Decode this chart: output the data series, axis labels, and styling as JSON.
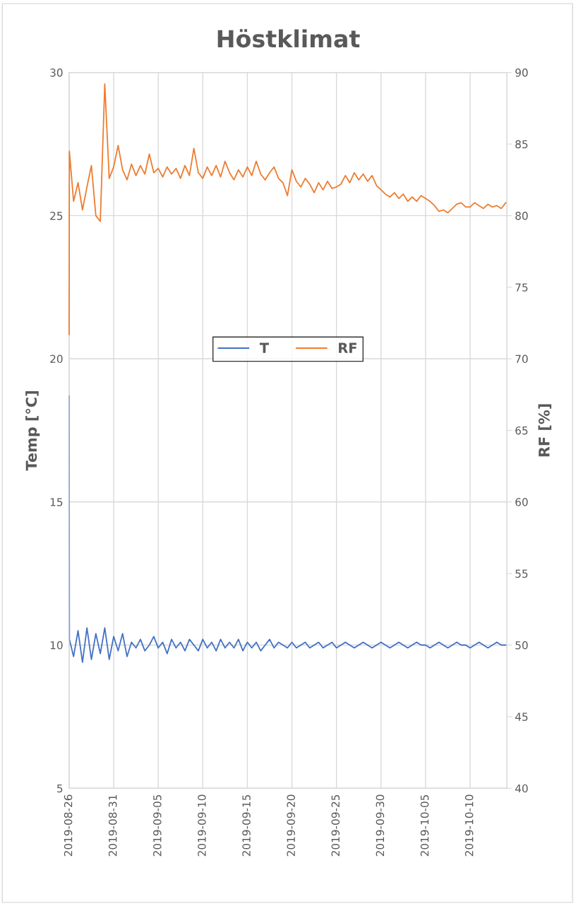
{
  "chart_data": {
    "type": "line",
    "title": "Höstklimat",
    "ylabel": "Temp [°C]",
    "y2label": "RF [%]",
    "x": [
      "2019-08-26",
      "2019-08-26T00:45",
      "2019-08-26T12:00",
      "2019-08-27",
      "2019-08-27T12:00",
      "2019-08-28",
      "2019-08-28T12:00",
      "2019-08-29",
      "2019-08-29T12:00",
      "2019-08-30",
      "2019-08-30T12:00",
      "2019-08-31",
      "2019-08-31T12:00",
      "2019-09-01",
      "2019-09-01T12:00",
      "2019-09-02",
      "2019-09-02T12:00",
      "2019-09-03",
      "2019-09-03T12:00",
      "2019-09-04",
      "2019-09-04T12:00",
      "2019-09-05",
      "2019-09-05T12:00",
      "2019-09-06",
      "2019-09-06T12:00",
      "2019-09-07",
      "2019-09-07T12:00",
      "2019-09-08",
      "2019-09-08T12:00",
      "2019-09-09",
      "2019-09-09T12:00",
      "2019-09-10",
      "2019-09-10T12:00",
      "2019-09-11",
      "2019-09-11T12:00",
      "2019-09-12",
      "2019-09-12T12:00",
      "2019-09-13",
      "2019-09-13T12:00",
      "2019-09-14",
      "2019-09-14T12:00",
      "2019-09-15",
      "2019-09-15T12:00",
      "2019-09-16",
      "2019-09-16T12:00",
      "2019-09-17",
      "2019-09-17T12:00",
      "2019-09-18",
      "2019-09-18T12:00",
      "2019-09-19",
      "2019-09-19T12:00",
      "2019-09-20",
      "2019-09-20T12:00",
      "2019-09-21",
      "2019-09-21T12:00",
      "2019-09-22",
      "2019-09-22T12:00",
      "2019-09-23",
      "2019-09-23T12:00",
      "2019-09-24",
      "2019-09-24T12:00",
      "2019-09-25",
      "2019-09-25T12:00",
      "2019-09-26",
      "2019-09-26T12:00",
      "2019-09-27",
      "2019-09-27T12:00",
      "2019-09-28",
      "2019-09-28T12:00",
      "2019-09-29",
      "2019-09-29T12:00",
      "2019-09-30",
      "2019-09-30T12:00",
      "2019-10-01",
      "2019-10-01T12:00",
      "2019-10-02",
      "2019-10-02T12:00",
      "2019-10-03",
      "2019-10-03T12:00",
      "2019-10-04",
      "2019-10-04T12:00",
      "2019-10-05",
      "2019-10-05T12:00",
      "2019-10-06",
      "2019-10-06T12:00",
      "2019-10-07",
      "2019-10-07T12:00",
      "2019-10-08",
      "2019-10-08T12:00",
      "2019-10-09",
      "2019-10-09T12:00",
      "2019-10-10",
      "2019-10-10T12:00",
      "2019-10-11",
      "2019-10-11T12:00",
      "2019-10-12",
      "2019-10-12T12:00",
      "2019-10-13",
      "2019-10-13T12:00",
      "2019-10-14"
    ],
    "series": [
      {
        "name": "T",
        "color": "#4472c4",
        "values": [
          18.7,
          10.2,
          9.6,
          10.5,
          9.4,
          10.6,
          9.5,
          10.4,
          9.7,
          10.6,
          9.5,
          10.3,
          9.8,
          10.4,
          9.6,
          10.1,
          9.9,
          10.2,
          9.8,
          10.0,
          10.3,
          9.9,
          10.1,
          9.7,
          10.2,
          9.9,
          10.1,
          9.8,
          10.2,
          10.0,
          9.8,
          10.2,
          9.9,
          10.1,
          9.8,
          10.2,
          9.9,
          10.1,
          9.9,
          10.2,
          9.8,
          10.1,
          9.9,
          10.1,
          9.8,
          10.0,
          10.2,
          9.9,
          10.1,
          10.0,
          9.9,
          10.1,
          9.9,
          10.0,
          10.1,
          9.9,
          10.0,
          10.1,
          9.9,
          10.0,
          10.1,
          9.9,
          10.0,
          10.1,
          10.0,
          9.9,
          10.0,
          10.1,
          10.0,
          9.9,
          10.0,
          10.1,
          10.0,
          9.9,
          10.0,
          10.1,
          10.0,
          9.9,
          10.0,
          10.1,
          10.0,
          10.0,
          9.9,
          10.0,
          10.1,
          10.0,
          9.9,
          10.0,
          10.1,
          10.0,
          10.0,
          9.9,
          10.0,
          10.1,
          10.0,
          9.9,
          10.0,
          10.1,
          10.0,
          10.0
        ]
      },
      {
        "name": "RF",
        "color": "#ed7d31",
        "axis": "y2",
        "values": [
          71.7,
          84.5,
          81.0,
          82.3,
          80.4,
          82.0,
          83.5,
          80.0,
          79.6,
          89.2,
          82.6,
          83.4,
          84.9,
          83.2,
          82.5,
          83.6,
          82.8,
          83.5,
          82.9,
          84.3,
          83.0,
          83.3,
          82.7,
          83.4,
          82.9,
          83.3,
          82.6,
          83.5,
          82.8,
          84.7,
          83.0,
          82.6,
          83.4,
          82.8,
          83.5,
          82.7,
          83.8,
          83.0,
          82.5,
          83.2,
          82.7,
          83.4,
          82.8,
          83.8,
          82.9,
          82.5,
          83.0,
          83.4,
          82.6,
          82.3,
          81.4,
          83.2,
          82.4,
          82.0,
          82.6,
          82.2,
          81.6,
          82.3,
          81.8,
          82.4,
          81.9,
          82.0,
          82.2,
          82.8,
          82.3,
          83.0,
          82.5,
          82.9,
          82.4,
          82.8,
          82.1,
          81.8,
          81.5,
          81.3,
          81.6,
          81.2,
          81.5,
          81.0,
          81.3,
          81.0,
          81.4,
          81.2,
          81.0,
          80.7,
          80.3,
          80.4,
          80.2,
          80.5,
          80.8,
          80.9,
          80.6,
          80.6,
          80.9,
          80.7,
          80.5,
          80.8,
          80.6,
          80.7,
          80.5,
          80.9
        ]
      }
    ],
    "xlim": [
      "2019-08-26",
      "2019-10-14T03:00"
    ],
    "xticks": [
      "2019-08-26",
      "2019-08-31",
      "2019-09-05",
      "2019-09-10",
      "2019-09-15",
      "2019-09-20",
      "2019-09-25",
      "2019-09-30",
      "2019-10-05",
      "2019-10-10"
    ],
    "ylim": [
      5,
      30
    ],
    "yticks": [
      5,
      10,
      15,
      20,
      25,
      30
    ],
    "y2lim": [
      40,
      90
    ],
    "y2ticks": [
      40,
      45,
      50,
      55,
      60,
      65,
      70,
      75,
      80,
      85,
      90
    ],
    "grid": true,
    "legend": "top",
    "line_style": "solid",
    "marker": "none"
  }
}
